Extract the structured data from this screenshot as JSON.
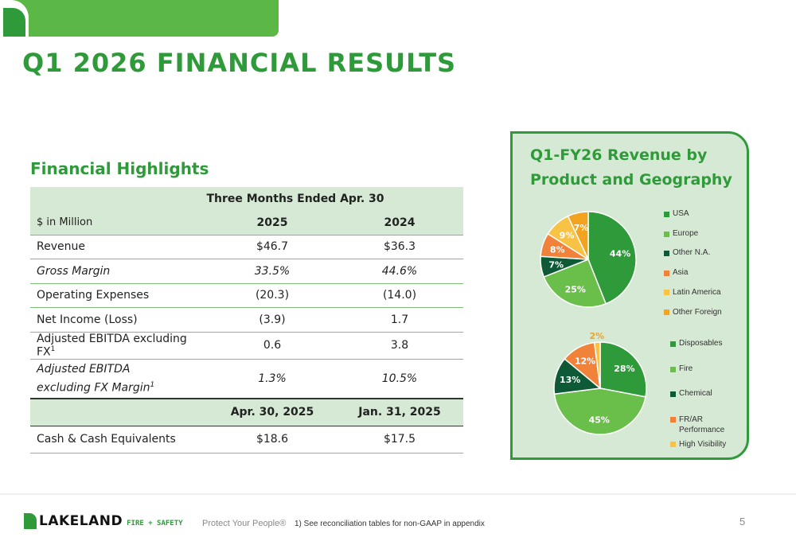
{
  "title": "Q1 2026 FINANCIAL RESULTS",
  "highlights": {
    "title": "Financial Highlights",
    "period_header": "Three Months Ended Apr. 30",
    "unit_label": "$ in Million",
    "col1": "2025",
    "col2": "2024",
    "rows": [
      {
        "label": "Revenue",
        "v1": "$46.7",
        "v2": "$36.3"
      },
      {
        "label": "Gross Margin",
        "v1": "33.5%",
        "v2": "44.6%"
      },
      {
        "label": "Operating Expenses",
        "v1": "(20.3)",
        "v2": "(14.0)"
      },
      {
        "label": "Net Income (Loss)",
        "v1": "(3.9)",
        "v2": "1.7"
      },
      {
        "label": "Adjusted EBITDA excluding FX",
        "sup": "1",
        "v1": "0.6",
        "v2": "3.8"
      },
      {
        "label_line1": "Adjusted EBITDA",
        "label_line2": "excluding FX Margin",
        "sup": "1",
        "v1": "1.3%",
        "v2": "10.5%"
      }
    ],
    "balance_col1": "Apr. 30, 2025",
    "balance_col2": "Jan. 31, 2025",
    "cash": {
      "label": "Cash & Cash Equivalents",
      "v1": "$18.6",
      "v2": "$17.5"
    }
  },
  "revenue_box": {
    "title": "Q1-FY26 Revenue by Product and Geography"
  },
  "chart_data": [
    {
      "type": "pie",
      "title": "",
      "categories": [
        "USA",
        "Europe",
        "Other N.A.",
        "Asia",
        "Latin America",
        "Other Foreign"
      ],
      "values": [
        44,
        25,
        7,
        8,
        9,
        7
      ],
      "labels": [
        "44%",
        "25%",
        "7%",
        "8%",
        "9%",
        "7%"
      ],
      "colors": [
        "#2f9a3a",
        "#6abf4b",
        "#0e5a36",
        "#f0823a",
        "#f8c244",
        "#f2a320"
      ],
      "legend_position": "right"
    },
    {
      "type": "pie",
      "title": "",
      "categories": [
        "Disposables",
        "Fire",
        "Chemical",
        "FR/AR Performance",
        "High Visibility"
      ],
      "values": [
        28,
        45,
        13,
        12,
        2
      ],
      "labels": [
        "28%",
        "45%",
        "13%",
        "12%",
        "2%"
      ],
      "colors": [
        "#2f9a3a",
        "#6abf4b",
        "#0e5a36",
        "#f0823a",
        "#f8c244"
      ],
      "legend_position": "right"
    }
  ],
  "footer": {
    "logo_text": "LAKELAND",
    "logo_sub": "FIRE + SAFETY",
    "tagline": "Protect Your People®",
    "footnote": "1) See reconciliation tables for non-GAAP in appendix",
    "page_number": "5"
  }
}
